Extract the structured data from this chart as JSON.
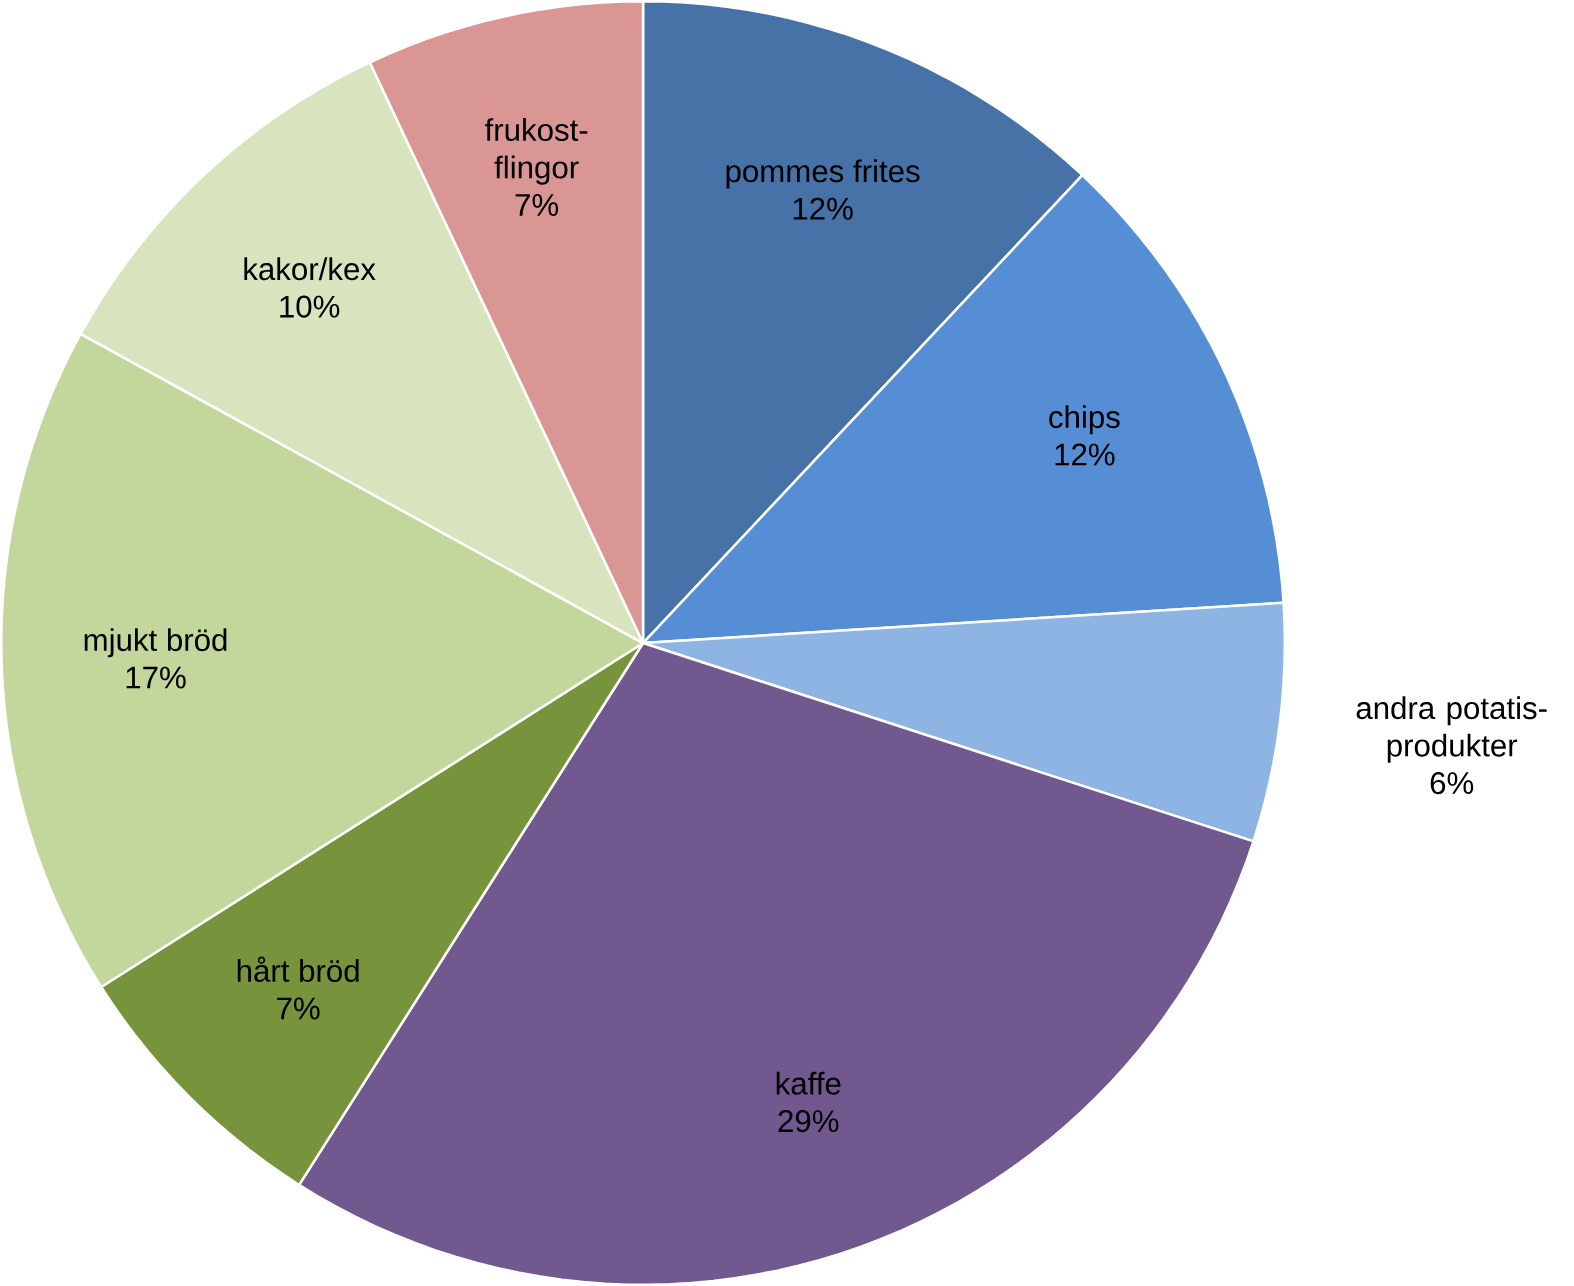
{
  "chart_data": {
    "type": "pie",
    "categories": [
      "pommes frites",
      "chips",
      "andra potatis-produkter",
      "kaffe",
      "hårt bröd",
      "mjukt bröd",
      "kakor/kex",
      "frukost-flingor"
    ],
    "values": [
      12,
      12,
      6,
      29,
      7,
      17,
      10,
      7
    ],
    "value_labels": [
      "12%",
      "12%",
      "6%",
      "29%",
      "7%",
      "17%",
      "10%",
      "7%"
    ],
    "colors": [
      "#4672a8",
      "#558ed5",
      "#8eb4e3",
      "#71588f",
      "#77933c",
      "#c3d69b",
      "#d7e4bd",
      "#d99694"
    ]
  }
}
